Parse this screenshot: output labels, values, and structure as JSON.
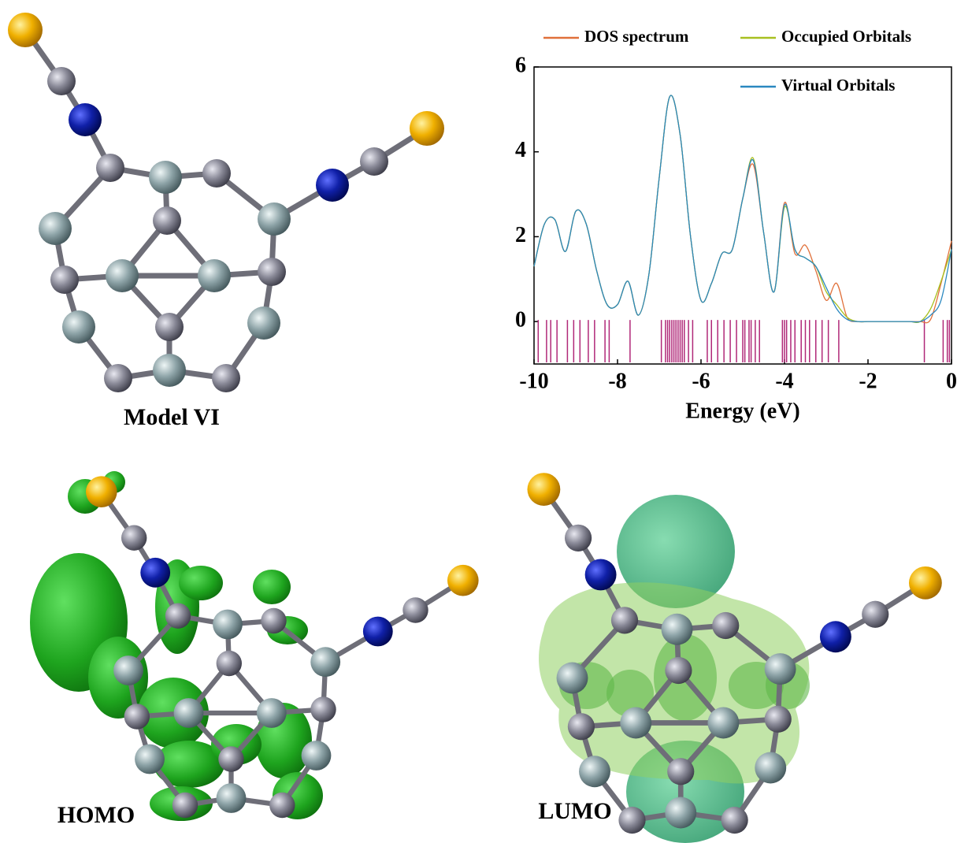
{
  "panels": {
    "model_label": "Model VI",
    "homo_label": "HOMO",
    "lumo_label": "LUMO"
  },
  "chart_data": {
    "type": "line",
    "xlabel": "Energy (eV)",
    "x": [
      -10,
      -9.75,
      -9.5,
      -9.25,
      -9,
      -8.75,
      -8.5,
      -8.25,
      -8,
      -7.75,
      -7.5,
      -7.25,
      -7,
      -6.75,
      -6.5,
      -6.25,
      -6,
      -5.75,
      -5.5,
      -5.25,
      -5,
      -4.75,
      -4.5,
      -4.25,
      -4,
      -3.75,
      -3.5,
      -3.25,
      -3,
      -2.75,
      -2.5,
      -2.25,
      -2,
      -1.75,
      -1.5,
      -1.25,
      -1,
      -0.75,
      -0.5,
      -0.25,
      0
    ],
    "series": [
      {
        "name": "DOS spectrum",
        "color": "#e0703a",
        "values": [
          1.3,
          2.3,
          2.4,
          1.65,
          2.6,
          2.3,
          1.2,
          0.4,
          0.4,
          0.95,
          0.15,
          1.1,
          3.4,
          5.3,
          4.4,
          2.0,
          0.5,
          0.9,
          1.6,
          1.7,
          2.9,
          3.7,
          2.1,
          0.7,
          2.8,
          1.6,
          1.8,
          1.2,
          0.5,
          0.9,
          0.1,
          0,
          0,
          0,
          0,
          0,
          0,
          0,
          0.05,
          0.9,
          1.9
        ]
      },
      {
        "name": "Occupied Orbitals",
        "color": "#a8c020",
        "values": [
          1.3,
          2.3,
          2.4,
          1.65,
          2.6,
          2.3,
          1.2,
          0.4,
          0.4,
          0.95,
          0.15,
          1.1,
          3.4,
          5.3,
          4.4,
          2.0,
          0.5,
          0.9,
          1.6,
          1.7,
          2.9,
          3.85,
          2.1,
          0.7,
          2.7,
          1.7,
          1.5,
          1.3,
          0.7,
          0.4,
          0.1,
          0,
          0,
          0,
          0,
          0,
          0,
          0,
          0.3,
          0.95,
          1.7
        ]
      },
      {
        "name": "Virtual Orbitals",
        "color": "#2a88c0",
        "values": [
          1.3,
          2.3,
          2.4,
          1.65,
          2.6,
          2.3,
          1.2,
          0.4,
          0.4,
          0.95,
          0.15,
          1.1,
          3.4,
          5.3,
          4.4,
          2.0,
          0.5,
          0.9,
          1.6,
          1.7,
          2.9,
          3.8,
          2.1,
          0.7,
          2.75,
          1.7,
          1.5,
          1.3,
          0.8,
          0.3,
          0.05,
          0,
          0,
          0,
          0,
          0,
          0,
          0,
          0.15,
          0.5,
          1.7
        ]
      }
    ],
    "stick_color": "#b02878",
    "sticks": [
      -9.9,
      -9.7,
      -9.6,
      -9.45,
      -9.2,
      -9.05,
      -8.9,
      -8.7,
      -8.55,
      -8.3,
      -8.2,
      -7.7,
      -6.95,
      -6.85,
      -6.8,
      -6.75,
      -6.7,
      -6.65,
      -6.6,
      -6.55,
      -6.5,
      -6.45,
      -6.4,
      -6.3,
      -6.2,
      -5.85,
      -5.75,
      -5.6,
      -5.45,
      -5.3,
      -5.15,
      -5.0,
      -4.95,
      -4.85,
      -4.8,
      -4.7,
      -4.6,
      -4.05,
      -4.0,
      -3.95,
      -3.85,
      -3.75,
      -3.6,
      -3.5,
      -3.4,
      -3.25,
      -3.1,
      -2.95,
      -2.7,
      -0.65,
      -0.2,
      -0.1,
      -0.05
    ],
    "xlim": [
      -10,
      0
    ],
    "ylim": [
      -1,
      6
    ],
    "xticks": [
      -10,
      -8,
      -6,
      -4,
      -2,
      0
    ],
    "yticks": [
      0,
      2,
      4,
      6
    ]
  }
}
